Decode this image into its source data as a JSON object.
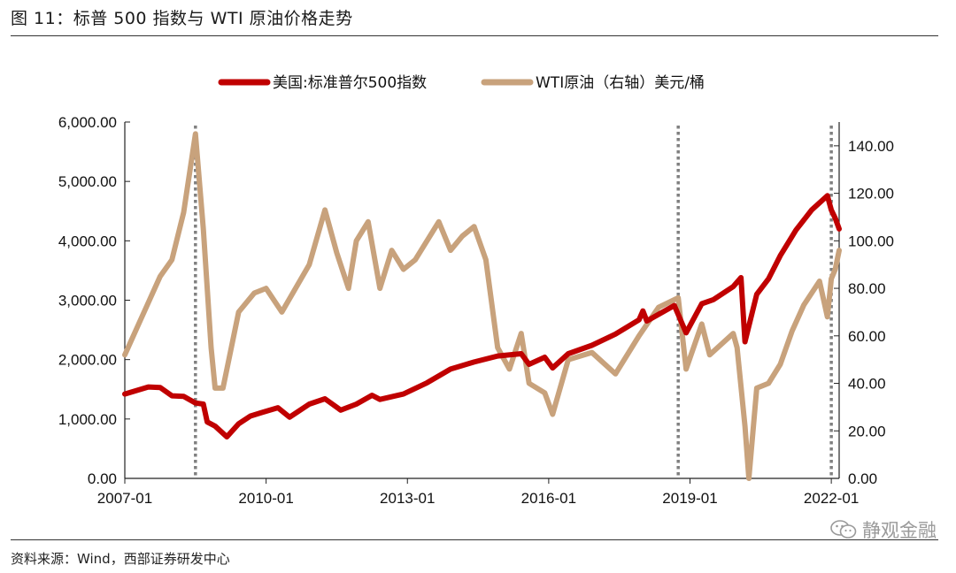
{
  "header": {
    "title": "图 11：标普 500 指数与 WTI 原油价格走势"
  },
  "footer": {
    "source": "资料来源：Wind，西部证券研发中心",
    "watermark": "静观金融"
  },
  "chart_data": {
    "type": "line",
    "x_start": "2007-01",
    "x_end": "2022-03",
    "x_ticks": [
      "2007-01",
      "2010-01",
      "2013-01",
      "2016-01",
      "2019-01",
      "2022-01"
    ],
    "y_left": {
      "min": 0,
      "max": 6000,
      "ticks": [
        "0.00",
        "1,000.00",
        "2,000.00",
        "3,000.00",
        "4,000.00",
        "5,000.00",
        "6,000.00"
      ]
    },
    "y_right": {
      "min": 0,
      "max": 150,
      "ticks": [
        "0.00",
        "20.00",
        "40.00",
        "60.00",
        "80.00",
        "100.00",
        "120.00",
        "140.00"
      ]
    },
    "legend_position": "top-center",
    "reference_dates": [
      "2008-07",
      "2018-10",
      "2022-01"
    ],
    "series": [
      {
        "name": "美国:标准普尔500指数",
        "axis": "left",
        "color": "#c00000",
        "points": [
          [
            "2007-01",
            1420
          ],
          [
            "2007-04",
            1480
          ],
          [
            "2007-07",
            1540
          ],
          [
            "2007-10",
            1530
          ],
          [
            "2008-01",
            1390
          ],
          [
            "2008-04",
            1380
          ],
          [
            "2008-07",
            1270
          ],
          [
            "2008-09",
            1250
          ],
          [
            "2008-10",
            950
          ],
          [
            "2008-12",
            880
          ],
          [
            "2009-03",
            700
          ],
          [
            "2009-06",
            920
          ],
          [
            "2009-09",
            1050
          ],
          [
            "2009-12",
            1110
          ],
          [
            "2010-04",
            1190
          ],
          [
            "2010-07",
            1030
          ],
          [
            "2010-12",
            1250
          ],
          [
            "2011-04",
            1340
          ],
          [
            "2011-08",
            1150
          ],
          [
            "2011-12",
            1250
          ],
          [
            "2012-04",
            1400
          ],
          [
            "2012-06",
            1330
          ],
          [
            "2012-12",
            1420
          ],
          [
            "2013-06",
            1610
          ],
          [
            "2013-12",
            1840
          ],
          [
            "2014-06",
            1960
          ],
          [
            "2014-12",
            2060
          ],
          [
            "2015-06",
            2100
          ],
          [
            "2015-08",
            1920
          ],
          [
            "2015-12",
            2040
          ],
          [
            "2016-02",
            1860
          ],
          [
            "2016-06",
            2100
          ],
          [
            "2016-12",
            2240
          ],
          [
            "2017-06",
            2430
          ],
          [
            "2017-12",
            2670
          ],
          [
            "2018-01",
            2820
          ],
          [
            "2018-02",
            2650
          ],
          [
            "2018-09",
            2910
          ],
          [
            "2018-12",
            2450
          ],
          [
            "2019-04",
            2940
          ],
          [
            "2019-07",
            3010
          ],
          [
            "2019-12",
            3230
          ],
          [
            "2020-02",
            3380
          ],
          [
            "2020-03",
            2300
          ],
          [
            "2020-06",
            3100
          ],
          [
            "2020-09",
            3360
          ],
          [
            "2020-12",
            3750
          ],
          [
            "2021-04",
            4180
          ],
          [
            "2021-08",
            4520
          ],
          [
            "2021-12",
            4760
          ],
          [
            "2022-01",
            4520
          ],
          [
            "2022-02",
            4380
          ],
          [
            "2022-03",
            4200
          ]
        ]
      },
      {
        "name": "WTI原油（右轴）美元/桶",
        "axis": "right",
        "color": "#c8a27c",
        "points": [
          [
            "2007-01",
            52
          ],
          [
            "2007-04",
            63
          ],
          [
            "2007-07",
            74
          ],
          [
            "2007-10",
            85
          ],
          [
            "2008-01",
            92
          ],
          [
            "2008-04",
            112
          ],
          [
            "2008-07",
            145
          ],
          [
            "2008-09",
            105
          ],
          [
            "2008-11",
            55
          ],
          [
            "2008-12",
            38
          ],
          [
            "2009-02",
            38
          ],
          [
            "2009-06",
            70
          ],
          [
            "2009-10",
            78
          ],
          [
            "2010-01",
            80
          ],
          [
            "2010-05",
            70
          ],
          [
            "2010-12",
            90
          ],
          [
            "2011-04",
            113
          ],
          [
            "2011-07",
            95
          ],
          [
            "2011-10",
            80
          ],
          [
            "2011-12",
            100
          ],
          [
            "2012-03",
            108
          ],
          [
            "2012-06",
            80
          ],
          [
            "2012-09",
            96
          ],
          [
            "2012-12",
            88
          ],
          [
            "2013-03",
            92
          ],
          [
            "2013-09",
            108
          ],
          [
            "2013-12",
            96
          ],
          [
            "2014-03",
            102
          ],
          [
            "2014-06",
            106
          ],
          [
            "2014-09",
            92
          ],
          [
            "2014-12",
            55
          ],
          [
            "2015-03",
            46
          ],
          [
            "2015-06",
            61
          ],
          [
            "2015-08",
            40
          ],
          [
            "2015-12",
            36
          ],
          [
            "2016-02",
            27
          ],
          [
            "2016-06",
            50
          ],
          [
            "2016-12",
            53
          ],
          [
            "2017-06",
            44
          ],
          [
            "2017-12",
            60
          ],
          [
            "2018-05",
            72
          ],
          [
            "2018-10",
            76
          ],
          [
            "2018-12",
            46
          ],
          [
            "2019-04",
            65
          ],
          [
            "2019-06",
            52
          ],
          [
            "2019-12",
            61
          ],
          [
            "2020-01",
            55
          ],
          [
            "2020-03",
            22
          ],
          [
            "2020-04",
            0
          ],
          [
            "2020-06",
            38
          ],
          [
            "2020-09",
            40
          ],
          [
            "2020-12",
            48
          ],
          [
            "2021-03",
            62
          ],
          [
            "2021-06",
            73
          ],
          [
            "2021-10",
            83
          ],
          [
            "2021-12",
            68
          ],
          [
            "2022-01",
            84
          ],
          [
            "2022-02",
            88
          ],
          [
            "2022-03",
            96
          ]
        ]
      }
    ]
  }
}
